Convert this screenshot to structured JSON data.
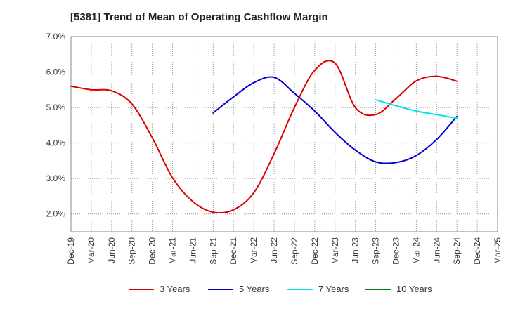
{
  "chart_data": {
    "type": "line",
    "title": "[5381]  Trend of Mean of Operating Cashflow Margin",
    "xlabel": "",
    "ylabel": "",
    "ylim": [
      1.5,
      7.0
    ],
    "y_ticks": [
      2.0,
      3.0,
      4.0,
      5.0,
      6.0,
      7.0
    ],
    "y_tick_labels": [
      "2.0%",
      "3.0%",
      "4.0%",
      "5.0%",
      "6.0%",
      "7.0%"
    ],
    "x_categories": [
      "Dec-19",
      "Mar-20",
      "Jun-20",
      "Sep-20",
      "Dec-20",
      "Mar-21",
      "Jun-21",
      "Sep-21",
      "Dec-21",
      "Mar-22",
      "Jun-22",
      "Sep-22",
      "Dec-22",
      "Mar-23",
      "Jun-23",
      "Sep-23",
      "Dec-23",
      "Mar-24",
      "Jun-24",
      "Sep-24",
      "Dec-24",
      "Mar-25"
    ],
    "grid": true,
    "legend_position": "bottom",
    "series": [
      {
        "name": "3 Years",
        "color": "#dd0000",
        "values": [
          5.6,
          5.5,
          5.47,
          5.1,
          4.15,
          3.02,
          2.35,
          2.05,
          2.12,
          2.6,
          3.7,
          5.0,
          6.05,
          6.25,
          5.0,
          4.8,
          5.25,
          5.75,
          5.88,
          5.74,
          null,
          null
        ]
      },
      {
        "name": "5 Years",
        "color": "#0000cc",
        "values": [
          null,
          null,
          null,
          null,
          null,
          null,
          null,
          4.85,
          5.3,
          5.7,
          5.85,
          5.4,
          4.9,
          4.3,
          3.8,
          3.47,
          3.45,
          3.65,
          4.1,
          4.75,
          null,
          null
        ]
      },
      {
        "name": "7 Years",
        "color": "#00e0e8",
        "values": [
          null,
          null,
          null,
          null,
          null,
          null,
          null,
          null,
          null,
          null,
          null,
          null,
          null,
          null,
          null,
          5.22,
          5.05,
          4.9,
          4.8,
          4.7,
          null,
          null
        ]
      },
      {
        "name": "10 Years",
        "color": "#008000",
        "values": [
          null,
          null,
          null,
          null,
          null,
          null,
          null,
          null,
          null,
          null,
          null,
          null,
          null,
          null,
          null,
          null,
          null,
          null,
          null,
          null,
          null,
          null
        ]
      }
    ]
  }
}
